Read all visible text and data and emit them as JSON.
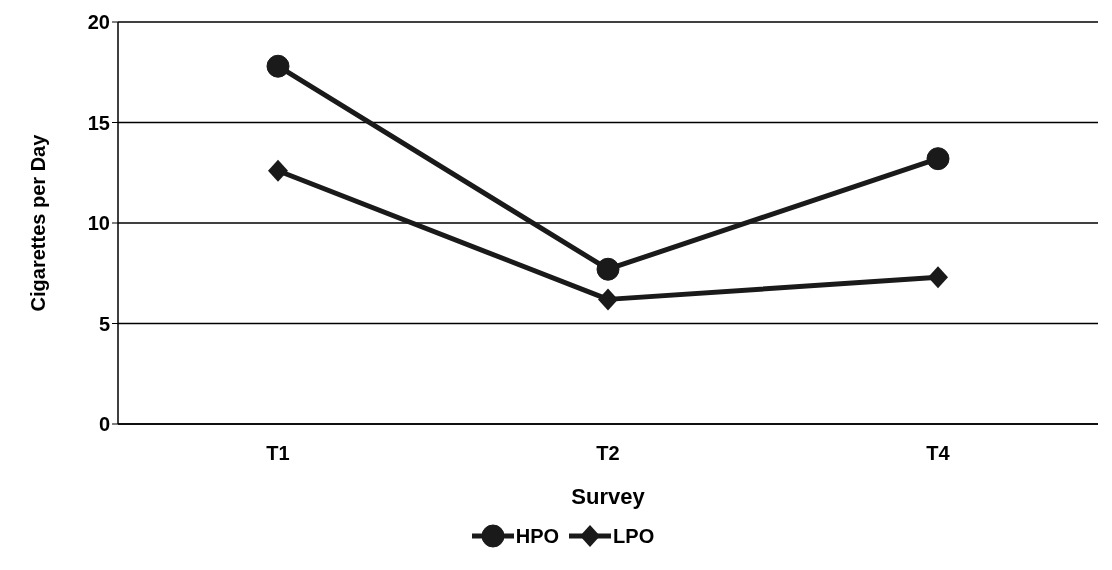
{
  "chart_data": {
    "type": "line",
    "xlabel": "Survey",
    "ylabel": "Cigarettes per Day",
    "categories": [
      "T1",
      "T2",
      "T4"
    ],
    "series": [
      {
        "name": "HPO",
        "color": "#1a1a1a",
        "marker": "circle",
        "values": [
          17.8,
          7.7,
          13.2
        ]
      },
      {
        "name": "LPO",
        "color": "#1a1a1a",
        "marker": "diamond",
        "values": [
          12.6,
          6.2,
          7.3
        ]
      }
    ],
    "ylim": [
      0,
      20
    ],
    "yticks": [
      0,
      5,
      10,
      15,
      20
    ],
    "grid": "y",
    "legend": "bottom"
  }
}
